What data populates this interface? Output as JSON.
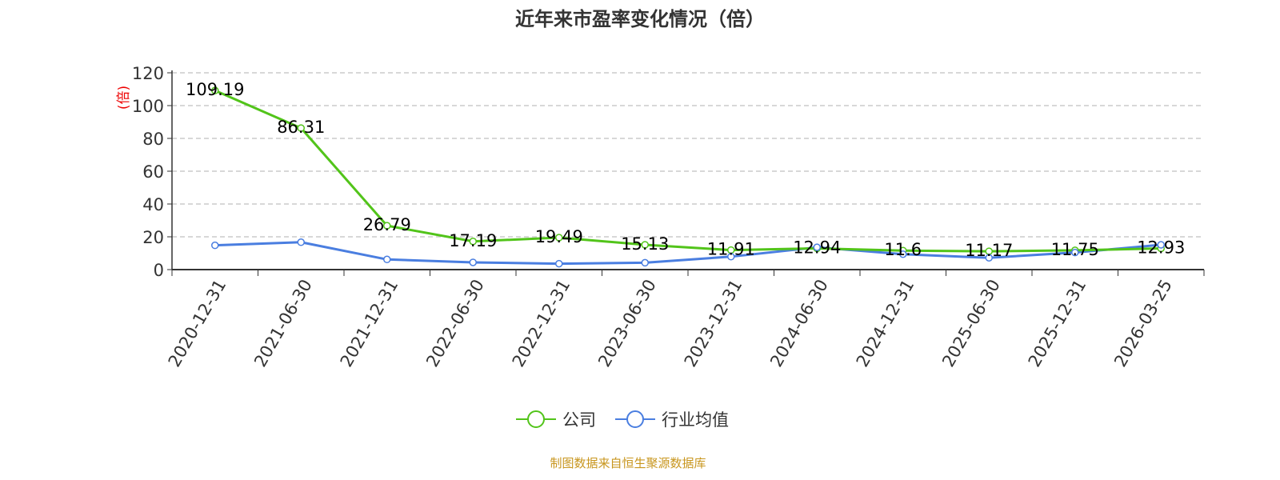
{
  "chart_data": {
    "type": "line",
    "title": "近年来市盈率变化情况（倍）",
    "ylabel": "(倍)",
    "xlabel": "",
    "ylim": [
      0,
      120
    ],
    "yticks": [
      0,
      20,
      40,
      60,
      80,
      100,
      120
    ],
    "grid": true,
    "legend_position": "bottom",
    "categories": [
      "2020-12-31",
      "2021-06-30",
      "2021-12-31",
      "2022-06-30",
      "2022-12-31",
      "2023-06-30",
      "2023-12-31",
      "2024-06-30",
      "2024-12-31",
      "2025-06-30",
      "2025-12-31",
      "2026-03-25"
    ],
    "series": [
      {
        "name": "公司",
        "color": "#52c41a",
        "labels": true,
        "values": [
          109.19,
          86.31,
          26.79,
          17.19,
          19.49,
          15.13,
          11.91,
          12.94,
          11.6,
          11.17,
          11.75,
          12.93
        ]
      },
      {
        "name": "行业均值",
        "color": "#4a7ee0",
        "labels": false,
        "values": [
          14.8,
          16.7,
          6.2,
          4.4,
          3.6,
          4.2,
          7.9,
          13.6,
          9.4,
          7.2,
          10.4,
          15.1
        ]
      }
    ]
  },
  "source": "制图数据来自恒生聚源数据库"
}
